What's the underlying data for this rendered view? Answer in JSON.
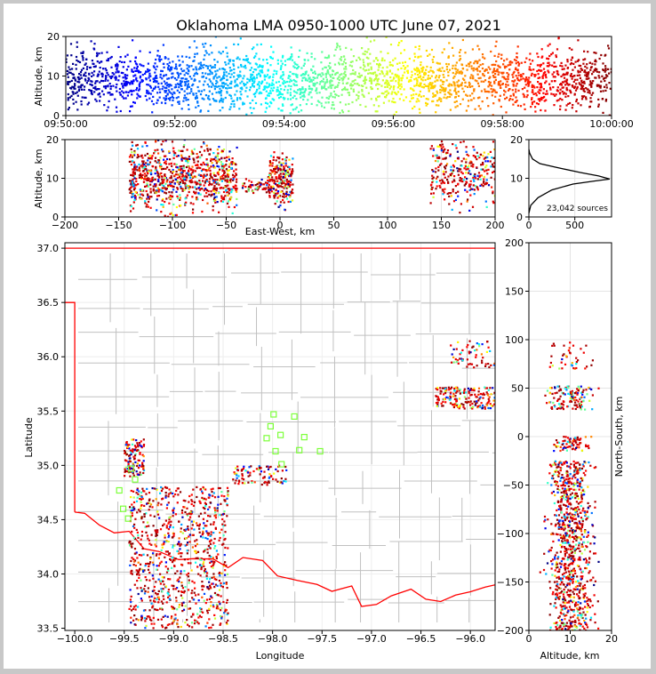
{
  "chart_data": [
    {
      "type": "scatter",
      "panel": "altitude-vs-time",
      "title": "Oklahoma LMA 0950-1000 UTC June 07, 2021",
      "ylabel": "Altitude, km",
      "ylim": [
        0,
        20
      ],
      "xlim": [
        "09:50:00",
        "10:00:00"
      ],
      "x_ticks": [
        "09:50:00",
        "09:52:00",
        "09:54:00",
        "09:56:00",
        "09:58:00",
        "10:00:00"
      ],
      "y_ticks": [
        "0",
        "10",
        "20"
      ],
      "color_by": "time",
      "colormap": "jet",
      "altitude_band_km": [
        5,
        13
      ],
      "altitude_extremes_km": [
        2,
        20
      ]
    },
    {
      "type": "scatter",
      "panel": "altitude-vs-east-west",
      "xlabel": "East-West, km",
      "ylabel": "Altitude, km",
      "xlim": [
        -200,
        200
      ],
      "ylim": [
        0,
        20
      ],
      "x_ticks": [
        "−200",
        "−150",
        "−100",
        "−50",
        "0",
        "50",
        "100",
        "150",
        "200"
      ],
      "y_ticks": [
        "0",
        "10",
        "20"
      ],
      "clusters": [
        {
          "x_range": [
            -140,
            -40
          ],
          "alt_range": [
            2,
            19
          ]
        },
        {
          "x_range": [
            -35,
            -10
          ],
          "alt_range": [
            6,
            10
          ]
        },
        {
          "x_range": [
            -10,
            12
          ],
          "alt_range": [
            3,
            16
          ]
        },
        {
          "x_range": [
            140,
            200
          ],
          "alt_range": [
            3,
            20
          ]
        }
      ]
    },
    {
      "type": "line",
      "panel": "source-count-histogram",
      "xlim": [
        0,
        900
      ],
      "ylim": [
        0,
        20
      ],
      "x_ticks": [
        "0",
        "500"
      ],
      "y_ticks": [
        "0",
        "10",
        "20"
      ],
      "annotation": "23,042 sources",
      "profile": [
        [
          0,
          1
        ],
        [
          20,
          3
        ],
        [
          100,
          5
        ],
        [
          250,
          7
        ],
        [
          480,
          8.5
        ],
        [
          720,
          9.3
        ],
        [
          880,
          9.8
        ],
        [
          760,
          10.6
        ],
        [
          560,
          11.5
        ],
        [
          300,
          12.8
        ],
        [
          120,
          13.8
        ],
        [
          40,
          15
        ],
        [
          8,
          16.5
        ],
        [
          0,
          17.5
        ]
      ]
    },
    {
      "type": "scatter",
      "panel": "plan-view-map",
      "xlabel": "Longitude",
      "ylabel": "Latitude",
      "xlim": [
        -100.1,
        -95.75
      ],
      "ylim": [
        33.48,
        37.05
      ],
      "x_ticks": [
        "−100.0",
        "−99.5",
        "−99.0",
        "−98.5",
        "−98.0",
        "−97.5",
        "−97.0",
        "−96.5",
        "−96.0"
      ],
      "y_ticks": [
        "33.5",
        "34.0",
        "34.5",
        "35.0",
        "35.5",
        "36.0",
        "36.5",
        "37.0"
      ],
      "stations": [
        [
          -97.99,
          35.47
        ],
        [
          -97.78,
          35.45
        ],
        [
          -98.02,
          35.36
        ],
        [
          -98.06,
          35.25
        ],
        [
          -97.92,
          35.28
        ],
        [
          -97.68,
          35.26
        ],
        [
          -97.97,
          35.13
        ],
        [
          -97.73,
          35.14
        ],
        [
          -97.52,
          35.13
        ],
        [
          -97.91,
          35.01
        ],
        [
          -99.55,
          34.77
        ],
        [
          -99.51,
          34.6
        ],
        [
          -99.46,
          34.51
        ],
        [
          -99.43,
          34.97
        ],
        [
          -99.39,
          34.87
        ]
      ],
      "clusters": [
        {
          "lon_range": [
            -99.45,
            -98.45
          ],
          "lat_range": [
            33.5,
            34.8
          ]
        },
        {
          "lon_range": [
            -99.5,
            -99.3
          ],
          "lat_range": [
            34.9,
            35.25
          ]
        },
        {
          "lon_range": [
            -98.4,
            -97.85
          ],
          "lat_range": [
            34.82,
            35.0
          ]
        },
        {
          "lon_range": [
            -96.35,
            -95.75
          ],
          "lat_range": [
            35.52,
            35.72
          ]
        },
        {
          "lon_range": [
            -96.2,
            -95.75
          ],
          "lat_range": [
            35.9,
            36.15
          ]
        }
      ]
    },
    {
      "type": "scatter",
      "panel": "north-south-vs-altitude",
      "xlabel": "Altitude, km",
      "ylabel": "North-South, km",
      "xlim": [
        0,
        20
      ],
      "ylim": [
        -200,
        200
      ],
      "x_ticks": [
        "0",
        "10",
        "20"
      ],
      "y_ticks": [
        "−200",
        "−150",
        "−100",
        "−50",
        "0",
        "50",
        "100",
        "150",
        "200"
      ]
    }
  ],
  "colors": {
    "state_border": "#ff0000",
    "county_lines": "#c0c0c0",
    "stations": "#7dff3b",
    "colormap_start": "#00007f",
    "colormap_end": "#7f0000"
  }
}
